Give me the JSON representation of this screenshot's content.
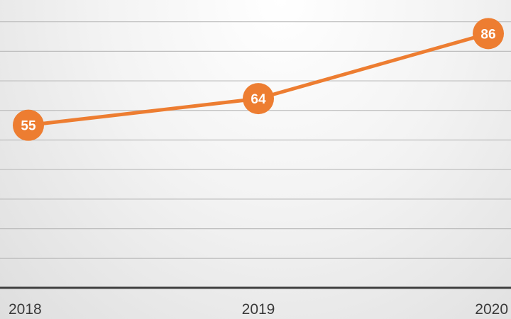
{
  "chart_data": {
    "type": "line",
    "categories": [
      "2018",
      "2019",
      "2020"
    ],
    "series": [
      {
        "values": [
          55,
          64,
          86
        ]
      }
    ],
    "ylim": [
      0,
      94
    ],
    "ytick_step": 10,
    "grid": true,
    "data_labels": true,
    "legend": "none",
    "colors": {
      "series": "#ED7D31",
      "grid": "#bdbdbd",
      "axis": "#3f3f3f",
      "label_text": "#ffffff",
      "tick_text": "#3a3a3a"
    }
  }
}
